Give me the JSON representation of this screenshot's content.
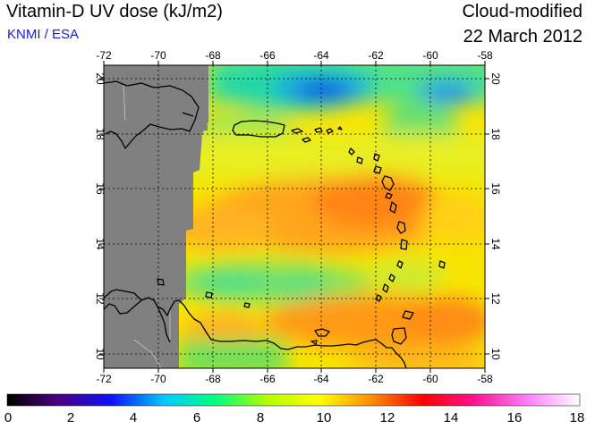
{
  "header": {
    "title": "Vitamin-D UV dose (kJ/m2)",
    "credit": "KNMI / ESA",
    "product": "Cloud-modified",
    "date": "22 March 2012"
  },
  "map": {
    "lon_range": [
      -72,
      -58
    ],
    "lat_range": [
      9.5,
      20.5
    ],
    "lon_ticks": [
      "-72",
      "-70",
      "-68",
      "-66",
      "-64",
      "-62",
      "-60",
      "-58"
    ],
    "lat_ticks": [
      "10",
      "12",
      "14",
      "16",
      "18",
      "20"
    ],
    "gridlines": true,
    "no_data_color": "#808080",
    "coastline_color": "#000000"
  },
  "colorbar": {
    "min": 0,
    "max": 18,
    "labels": [
      "0",
      "2",
      "4",
      "6",
      "8",
      "10",
      "12",
      "14",
      "16",
      "18"
    ],
    "colors": [
      "#000000",
      "#4b0082",
      "#1010ff",
      "#00c8ff",
      "#00ff7f",
      "#b4ff00",
      "#ffff00",
      "#ff8c00",
      "#ff0000",
      "#ff1493",
      "#ff80ff",
      "#ffffff"
    ]
  }
}
